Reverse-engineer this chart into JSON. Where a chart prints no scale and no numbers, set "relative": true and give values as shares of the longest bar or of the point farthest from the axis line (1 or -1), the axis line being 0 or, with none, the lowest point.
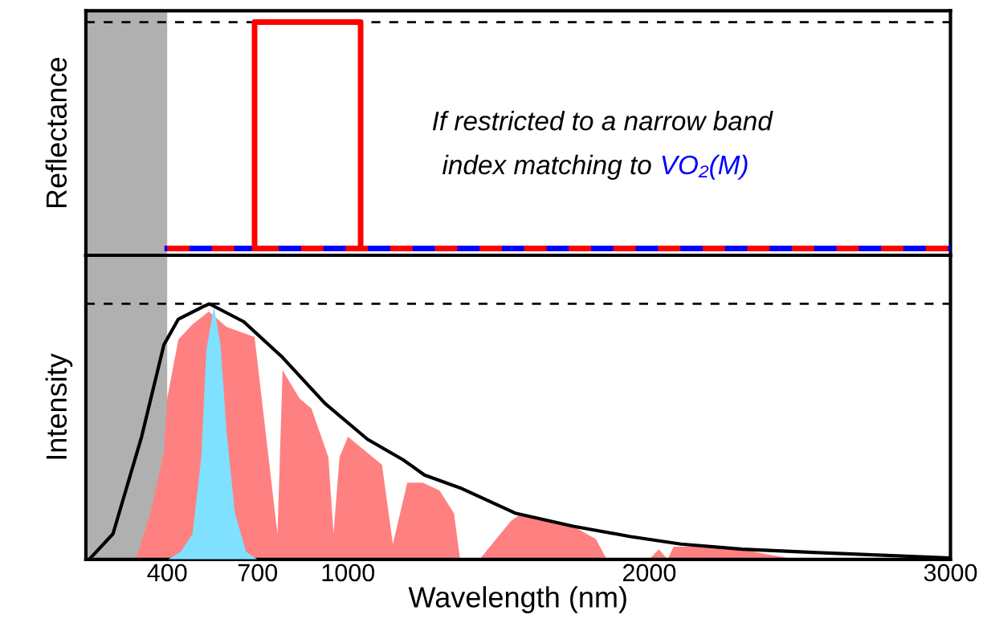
{
  "chart_data": [
    {
      "type": "line",
      "ylabel": "Reflectance",
      "relative": true,
      "xlim": [
        130,
        3000
      ],
      "tick_labels": false,
      "grid": false,
      "marker": "none",
      "series": [
        {
          "color": "#0000ff",
          "x": [
            400,
            3000
          ],
          "values": [
            0,
            0
          ],
          "line_style": "solid"
        },
        {
          "color": "#ff0000",
          "x": [
            400,
            3000
          ],
          "values": [
            0,
            0
          ],
          "line_style": "dashed"
        },
        {
          "color": "#ff0000",
          "x": [
            690,
            690,
            1042,
            1042
          ],
          "values": [
            0,
            1,
            1,
            0
          ],
          "line_style": "solid"
        }
      ],
      "ref_lines": [
        {
          "axis": "y",
          "value": 1,
          "color": "#000000",
          "line_style": "dashed"
        }
      ],
      "bands": [
        {
          "axis": "x",
          "from": 130,
          "to": 400,
          "color": "#b0b0b0"
        }
      ],
      "annotations": [
        "If restricted to a narrow band",
        "index matching to",
        "VO₂(M)"
      ]
    },
    {
      "type": "area",
      "ylabel": "Intensity",
      "xlabel": "Wavelength (nm)",
      "relative": true,
      "xlim": [
        130,
        3000
      ],
      "xticks": [
        400,
        700,
        1000,
        2000,
        3000
      ],
      "tick_labels": "x",
      "grid": false,
      "marker": "none",
      "series": [
        {
          "type": "area",
          "color": "#ff8080",
          "x": [
            296,
            344,
            389,
            400,
            437,
            484,
            538,
            597,
            690,
            766,
            783,
            839,
            879,
            935,
            952,
            972,
            1000,
            1113,
            1149,
            1197,
            1248,
            1304,
            1352,
            1372,
            1437,
            1541,
            1577,
            1747,
            1823,
            1859,
            2000,
            2032,
            2061,
            2081,
            2146,
            2310,
            2391,
            2488
          ],
          "values": [
            0,
            0.18,
            0.42,
            0.63,
            0.86,
            0.92,
            0.97,
            0.91,
            0.87,
            0.1,
            0.74,
            0.63,
            0.59,
            0.4,
            0.1,
            0.4,
            0.48,
            0.37,
            0.06,
            0.3,
            0.3,
            0.27,
            0.18,
            0,
            0,
            0.15,
            0.18,
            0.13,
            0.08,
            0,
            0,
            0.04,
            0,
            0.05,
            0.05,
            0.04,
            0.02,
            0
          ]
        },
        {
          "type": "area",
          "color": "#80e0ff",
          "x": [
            403,
            445,
            484,
            513,
            530,
            555,
            577,
            597,
            625,
            662,
            699
          ],
          "values": [
            0,
            0.03,
            0.1,
            0.4,
            0.82,
            0.99,
            0.84,
            0.5,
            0.18,
            0.03,
            0
          ]
        },
        {
          "type": "line",
          "color": "#000000",
          "line_style": "solid",
          "x": [
            141,
            220,
            315,
            389,
            437,
            521,
            540,
            654,
            783,
            924,
            1065,
            1183,
            1254,
            1372,
            1558,
            1747,
            1935,
            2105,
            2310,
            2593,
            3000
          ],
          "values": [
            0,
            0.1,
            0.48,
            0.84,
            0.94,
            0.99,
            1.0,
            0.93,
            0.79,
            0.61,
            0.47,
            0.39,
            0.33,
            0.28,
            0.18,
            0.13,
            0.09,
            0.06,
            0.04,
            0.025,
            0.006
          ]
        }
      ],
      "ref_lines": [
        {
          "axis": "y",
          "value": 1,
          "color": "#000000",
          "line_style": "dashed"
        }
      ],
      "bands": [
        {
          "axis": "x",
          "from": 130,
          "to": 400,
          "color": "#b0b0b0"
        }
      ]
    }
  ]
}
